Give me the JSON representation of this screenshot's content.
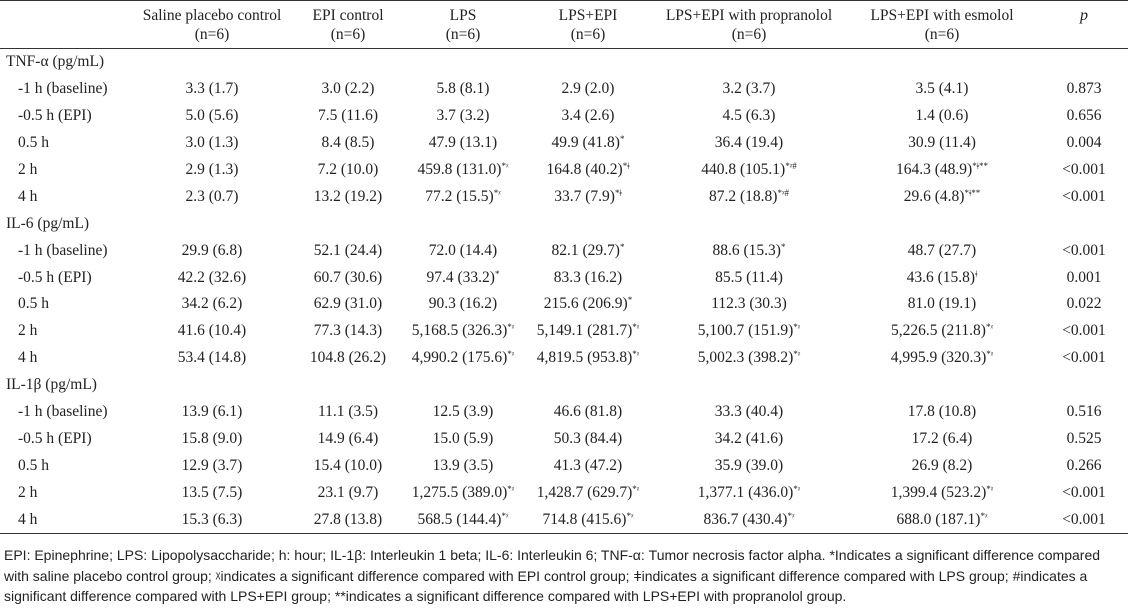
{
  "header": {
    "columns": [
      {
        "title": "",
        "n": ""
      },
      {
        "title": "Saline placebo control",
        "n": "(n=6)"
      },
      {
        "title": "EPI control",
        "n": "(n=6)"
      },
      {
        "title": "LPS",
        "n": "(n=6)"
      },
      {
        "title": "LPS+EPI",
        "n": "(n=6)"
      },
      {
        "title": "LPS+EPI with propranolol",
        "n": "(n=6)"
      },
      {
        "title": "LPS+EPI with esmolol",
        "n": "(n=6)"
      },
      {
        "title": "p",
        "n": ""
      }
    ]
  },
  "sections": [
    {
      "title": "TNF-α (pg/mL)",
      "rows": [
        {
          "label": "-1 h (baseline)",
          "cells": [
            {
              "v": "3.3 (1.7)",
              "s": ""
            },
            {
              "v": "3.0 (2.2)",
              "s": ""
            },
            {
              "v": "5.8 (8.1)",
              "s": ""
            },
            {
              "v": "2.9 (2.0)",
              "s": ""
            },
            {
              "v": "3.2 (3.7)",
              "s": ""
            },
            {
              "v": "3.5 (4.1)",
              "s": ""
            }
          ],
          "p": "0.873"
        },
        {
          "label": "-0.5 h (EPI)",
          "cells": [
            {
              "v": "5.0 (5.6)",
              "s": ""
            },
            {
              "v": "7.5 (11.6)",
              "s": ""
            },
            {
              "v": "3.7 (3.2)",
              "s": ""
            },
            {
              "v": "3.4 (2.6)",
              "s": ""
            },
            {
              "v": "4.5 (6.3)",
              "s": ""
            },
            {
              "v": "1.4 (0.6)",
              "s": ""
            }
          ],
          "p": "0.656"
        },
        {
          "label": "0.5 h",
          "cells": [
            {
              "v": "3.0 (1.3)",
              "s": ""
            },
            {
              "v": "8.4 (8.5)",
              "s": ""
            },
            {
              "v": "47.9 (13.1)",
              "s": ""
            },
            {
              "v": "49.9 (41.8)",
              "s": "*"
            },
            {
              "v": "36.4 (19.4)",
              "s": ""
            },
            {
              "v": "30.9 (11.4)",
              "s": ""
            }
          ],
          "p": "0.004"
        },
        {
          "label": "2 h",
          "cells": [
            {
              "v": "2.9 (1.3)",
              "s": ""
            },
            {
              "v": "7.2 (10.0)",
              "s": ""
            },
            {
              "v": "459.8 (131.0)",
              "s": "*ᵡ"
            },
            {
              "v": "164.8 (40.2)",
              "s": "*ǂ"
            },
            {
              "v": "440.8 (105.1)",
              "s": "*ᵡ#"
            },
            {
              "v": "164.3 (48.9)",
              "s": "*ǂ**"
            }
          ],
          "p": "<0.001"
        },
        {
          "label": "4 h",
          "cells": [
            {
              "v": "2.3 (0.7)",
              "s": ""
            },
            {
              "v": "13.2 (19.2)",
              "s": ""
            },
            {
              "v": "77.2 (15.5)",
              "s": "*ᵡ"
            },
            {
              "v": "33.7 (7.9)",
              "s": "*ǂ"
            },
            {
              "v": "87.2 (18.8)",
              "s": "*ᵡ#"
            },
            {
              "v": "29.6 (4.8)",
              "s": "*ǂ**"
            }
          ],
          "p": "<0.001"
        }
      ]
    },
    {
      "title": "IL-6 (pg/mL)",
      "rows": [
        {
          "label": "-1 h (baseline)",
          "cells": [
            {
              "v": "29.9 (6.8)",
              "s": ""
            },
            {
              "v": "52.1 (24.4)",
              "s": ""
            },
            {
              "v": "72.0 (14.4)",
              "s": ""
            },
            {
              "v": "82.1 (29.7)",
              "s": "*"
            },
            {
              "v": "88.6 (15.3)",
              "s": "*"
            },
            {
              "v": "48.7 (27.7)",
              "s": ""
            }
          ],
          "p": "<0.001"
        },
        {
          "label": "-0.5 h (EPI)",
          "cells": [
            {
              "v": "42.2 (32.6)",
              "s": ""
            },
            {
              "v": "60.7 (30.6)",
              "s": ""
            },
            {
              "v": "97.4 (33.2)",
              "s": "*"
            },
            {
              "v": "83.3 (16.2)",
              "s": ""
            },
            {
              "v": "85.5 (11.4)",
              "s": ""
            },
            {
              "v": "43.6 (15.8)",
              "s": "ǂ"
            }
          ],
          "p": "0.001"
        },
        {
          "label": "0.5 h",
          "cells": [
            {
              "v": "34.2 (6.2)",
              "s": ""
            },
            {
              "v": "62.9 (31.0)",
              "s": ""
            },
            {
              "v": "90.3 (16.2)",
              "s": ""
            },
            {
              "v": "215.6 (206.9)",
              "s": "*"
            },
            {
              "v": "112.3 (30.3)",
              "s": ""
            },
            {
              "v": "81.0 (19.1)",
              "s": ""
            }
          ],
          "p": "0.022"
        },
        {
          "label": "2 h",
          "cells": [
            {
              "v": "41.6 (10.4)",
              "s": ""
            },
            {
              "v": "77.3 (14.3)",
              "s": ""
            },
            {
              "v": "5,168.5 (326.3)",
              "s": "*ᵡ"
            },
            {
              "v": "5,149.1 (281.7)",
              "s": "*ᵡ"
            },
            {
              "v": "5,100.7 (151.9)",
              "s": "*ᵡ"
            },
            {
              "v": "5,226.5 (211.8)",
              "s": "*ᵡ"
            }
          ],
          "p": "<0.001"
        },
        {
          "label": "4 h",
          "cells": [
            {
              "v": "53.4 (14.8)",
              "s": ""
            },
            {
              "v": "104.8 (26.2)",
              "s": ""
            },
            {
              "v": "4,990.2 (175.6)",
              "s": "*ᵡ"
            },
            {
              "v": "4,819.5 (953.8)",
              "s": "*ᵡ"
            },
            {
              "v": "5,002.3 (398.2)",
              "s": "*ᵡ"
            },
            {
              "v": "4,995.9 (320.3)",
              "s": "*ᵡ"
            }
          ],
          "p": "<0.001"
        }
      ]
    },
    {
      "title": "IL-1β (pg/mL)",
      "rows": [
        {
          "label": "-1 h (baseline)",
          "cells": [
            {
              "v": "13.9 (6.1)",
              "s": ""
            },
            {
              "v": "11.1 (3.5)",
              "s": ""
            },
            {
              "v": "12.5 (3.9)",
              "s": ""
            },
            {
              "v": "46.6 (81.8)",
              "s": ""
            },
            {
              "v": "33.3 (40.4)",
              "s": ""
            },
            {
              "v": "17.8 (10.8)",
              "s": ""
            }
          ],
          "p": "0.516"
        },
        {
          "label": "-0.5 h (EPI)",
          "cells": [
            {
              "v": "15.8 (9.0)",
              "s": ""
            },
            {
              "v": "14.9 (6.4)",
              "s": ""
            },
            {
              "v": "15.0 (5.9)",
              "s": ""
            },
            {
              "v": "50.3 (84.4)",
              "s": ""
            },
            {
              "v": "34.2 (41.6)",
              "s": ""
            },
            {
              "v": "17.2 (6.4)",
              "s": ""
            }
          ],
          "p": "0.525"
        },
        {
          "label": "0.5 h",
          "cells": [
            {
              "v": "12.9 (3.7)",
              "s": ""
            },
            {
              "v": "15.4 (10.0)",
              "s": ""
            },
            {
              "v": "13.9 (3.5)",
              "s": ""
            },
            {
              "v": "41.3 (47.2)",
              "s": ""
            },
            {
              "v": "35.9 (39.0)",
              "s": ""
            },
            {
              "v": "26.9 (8.2)",
              "s": ""
            }
          ],
          "p": "0.266"
        },
        {
          "label": "2 h",
          "cells": [
            {
              "v": "13.5 (7.5)",
              "s": ""
            },
            {
              "v": "23.1 (9.7)",
              "s": ""
            },
            {
              "v": "1,275.5 (389.0)",
              "s": "*ᵡ"
            },
            {
              "v": "1,428.7 (629.7)",
              "s": "*ᵡ"
            },
            {
              "v": "1,377.1 (436.0)",
              "s": "*ᵡ"
            },
            {
              "v": "1,399.4 (523.2)",
              "s": "*ᵡ"
            }
          ],
          "p": "<0.001"
        },
        {
          "label": "4 h",
          "cells": [
            {
              "v": "15.3 (6.3)",
              "s": ""
            },
            {
              "v": "27.8 (13.8)",
              "s": ""
            },
            {
              "v": "568.5 (144.4)",
              "s": "*ᵡ"
            },
            {
              "v": "714.8 (415.6)",
              "s": "*ᵡ"
            },
            {
              "v": "836.7 (430.4)",
              "s": "*ᵡ"
            },
            {
              "v": "688.0 (187.1)",
              "s": "*ᵡ"
            }
          ],
          "p": "<0.001"
        }
      ]
    }
  ],
  "footnote": "EPI: Epinephrine; LPS: Lipopolysaccharide; h: hour; IL-1β: Interleukin 1 beta; IL-6: Interleukin 6; TNF-α: Tumor necrosis factor alpha. *Indicates a significant difference compared with saline placebo control group; ᵡindicates a significant difference compared with EPI control group; ǂindicates a significant difference compared with LPS group; #indicates a significant difference compared with LPS+EPI group; **indicates a significant difference compared with LPS+EPI with propranolol group."
}
